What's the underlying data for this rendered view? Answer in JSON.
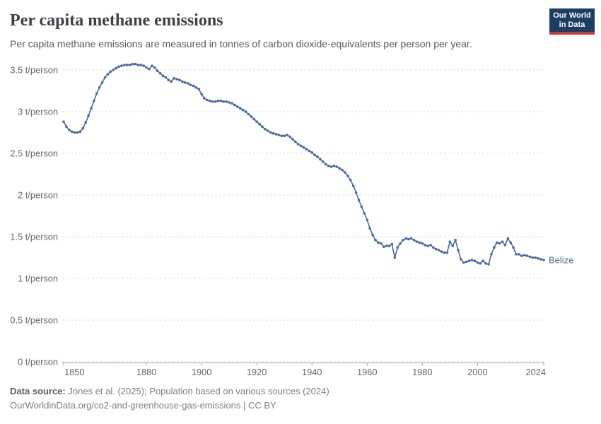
{
  "header": {
    "title": "Per capita methane emissions",
    "subtitle": "Per capita methane emissions are measured in tonnes of carbon dioxide-equivalents per person per year."
  },
  "logo": {
    "line1": "Our World",
    "line2": "in Data"
  },
  "colors": {
    "line": "#4C6A9C",
    "logo_bg": "#1d3d63",
    "logo_red": "#cf3530",
    "grid": "#dcdcdc",
    "axis_text": "#67676c"
  },
  "chart_data": {
    "type": "line",
    "title": "Per capita methane emissions",
    "entity": "Belize",
    "unit": "t/person",
    "start_year": 1850,
    "end_year": 2024,
    "values": [
      2.88,
      2.82,
      2.78,
      2.76,
      2.75,
      2.75,
      2.76,
      2.8,
      2.87,
      2.95,
      3.04,
      3.13,
      3.22,
      3.29,
      3.35,
      3.41,
      3.45,
      3.48,
      3.5,
      3.52,
      3.54,
      3.55,
      3.56,
      3.56,
      3.56,
      3.57,
      3.57,
      3.56,
      3.56,
      3.55,
      3.53,
      3.51,
      3.55,
      3.53,
      3.49,
      3.46,
      3.43,
      3.41,
      3.38,
      3.36,
      3.4,
      3.39,
      3.38,
      3.36,
      3.35,
      3.34,
      3.32,
      3.31,
      3.29,
      3.27,
      3.21,
      3.16,
      3.14,
      3.13,
      3.12,
      3.12,
      3.13,
      3.13,
      3.12,
      3.12,
      3.11,
      3.1,
      3.08,
      3.06,
      3.04,
      3.02,
      3.0,
      2.97,
      2.94,
      2.91,
      2.88,
      2.85,
      2.82,
      2.79,
      2.77,
      2.75,
      2.74,
      2.73,
      2.72,
      2.71,
      2.71,
      2.72,
      2.7,
      2.67,
      2.64,
      2.61,
      2.59,
      2.57,
      2.55,
      2.53,
      2.51,
      2.48,
      2.46,
      2.43,
      2.4,
      2.37,
      2.35,
      2.34,
      2.35,
      2.34,
      2.32,
      2.3,
      2.27,
      2.23,
      2.18,
      2.11,
      2.03,
      1.94,
      1.86,
      1.78,
      1.7,
      1.6,
      1.52,
      1.46,
      1.43,
      1.42,
      1.38,
      1.39,
      1.39,
      1.41,
      1.25,
      1.37,
      1.42,
      1.46,
      1.48,
      1.47,
      1.48,
      1.46,
      1.44,
      1.43,
      1.42,
      1.4,
      1.39,
      1.4,
      1.37,
      1.35,
      1.34,
      1.32,
      1.31,
      1.31,
      1.44,
      1.39,
      1.46,
      1.34,
      1.23,
      1.19,
      1.2,
      1.21,
      1.22,
      1.21,
      1.19,
      1.18,
      1.21,
      1.18,
      1.17,
      1.29,
      1.37,
      1.43,
      1.42,
      1.44,
      1.4,
      1.48,
      1.43,
      1.37,
      1.29,
      1.29,
      1.27,
      1.28,
      1.27,
      1.26,
      1.25,
      1.25,
      1.24,
      1.23,
      1.22
    ],
    "yticks": [
      {
        "value": 0,
        "label": "0 t/person"
      },
      {
        "value": 0.5,
        "label": "0.5 t/person"
      },
      {
        "value": 1,
        "label": "1 t/person"
      },
      {
        "value": 1.5,
        "label": "1.5 t/person"
      },
      {
        "value": 2,
        "label": "2 t/person"
      },
      {
        "value": 2.5,
        "label": "2.5 t/person"
      },
      {
        "value": 3,
        "label": "3 t/person"
      },
      {
        "value": 3.5,
        "label": "3.5 t/person"
      }
    ],
    "xticks": [
      1850,
      1880,
      1900,
      1920,
      1940,
      1960,
      1980,
      2000,
      2024
    ],
    "ylim": [
      0,
      3.65
    ],
    "xlim": [
      1850,
      2024
    ],
    "grid": true,
    "legend_position": "end-of-line-label"
  },
  "footer": {
    "source_label": "Data source:",
    "source_text": "Jones et al. (2025); Population based on various sources (2024)",
    "url": "OurWorldinData.org/co2-and-greenhouse-gas-emissions",
    "separator": " | ",
    "license": "CC BY"
  }
}
